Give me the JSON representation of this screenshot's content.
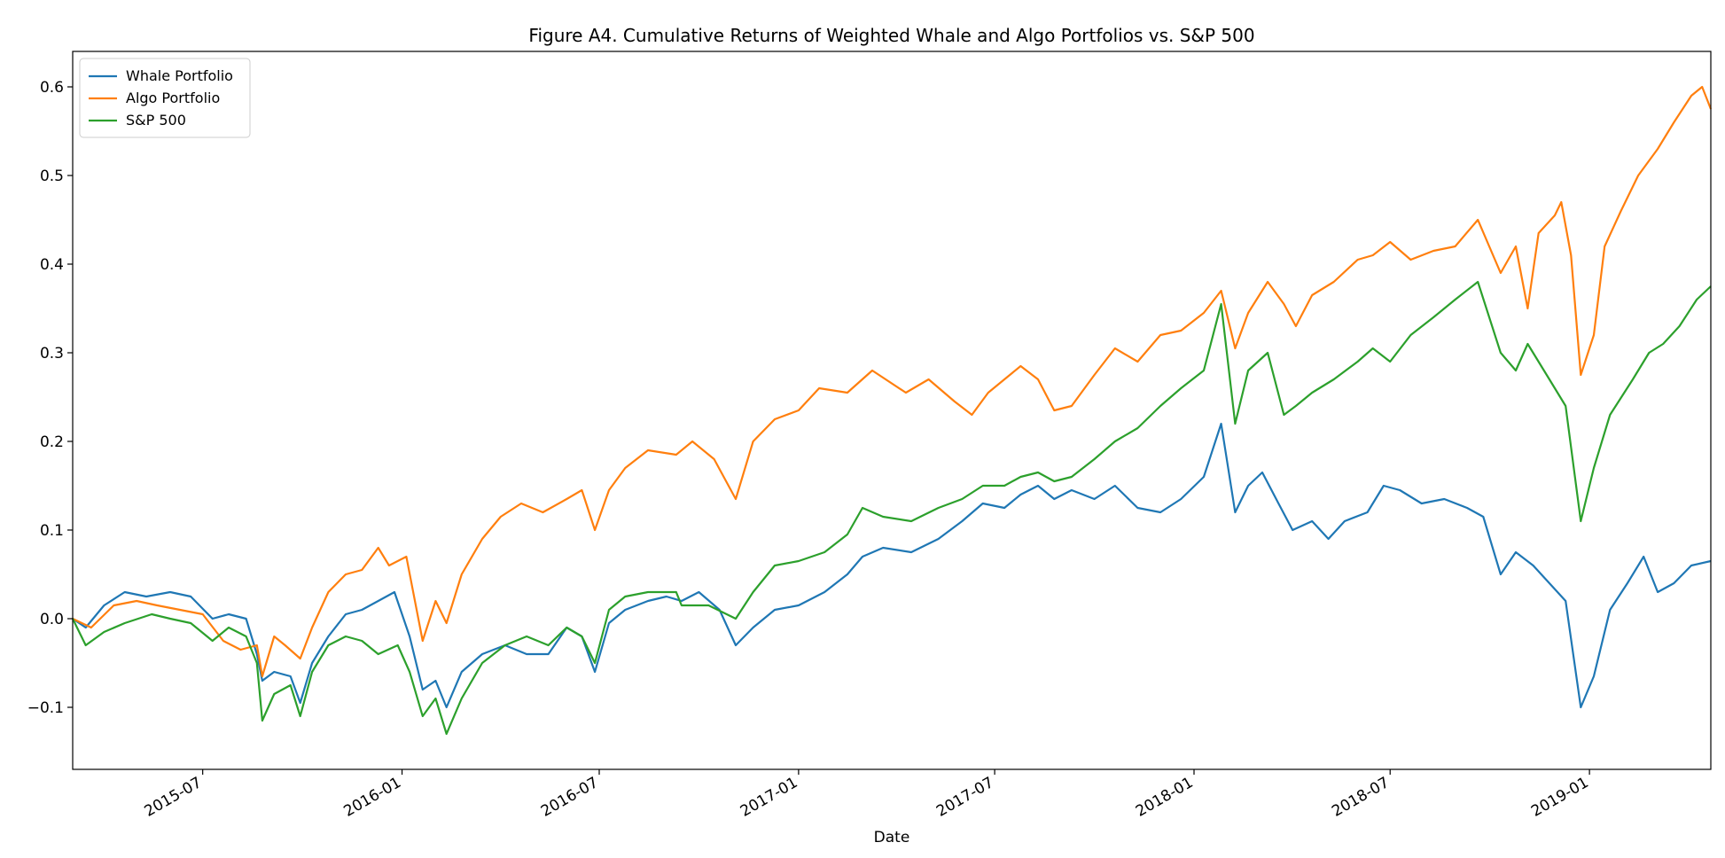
{
  "chart_data": {
    "type": "line",
    "title": "Figure A4. Cumulative Returns of Weighted Whale and Algo Portfolios vs. S&P 500",
    "xlabel": "Date",
    "ylabel": "",
    "xlim": [
      "2015-03-03",
      "2019-04-23"
    ],
    "ylim": [
      -0.17,
      0.64
    ],
    "grid": false,
    "legend_position": "top-left",
    "x_ticks": [
      "2015-07",
      "2016-01",
      "2016-07",
      "2017-01",
      "2017-07",
      "2018-01",
      "2018-07",
      "2019-01"
    ],
    "y_ticks": [
      "−0.1",
      "0.0",
      "0.1",
      "0.2",
      "0.3",
      "0.4",
      "0.5",
      "0.6"
    ],
    "series": [
      {
        "name": "Whale Portfolio",
        "color": "#1f77b4",
        "points": [
          [
            "2015-03-03",
            0.0
          ],
          [
            "2015-03-15",
            -0.01
          ],
          [
            "2015-04-01",
            0.015
          ],
          [
            "2015-04-20",
            0.03
          ],
          [
            "2015-05-10",
            0.025
          ],
          [
            "2015-06-01",
            0.03
          ],
          [
            "2015-06-20",
            0.025
          ],
          [
            "2015-07-10",
            0.0
          ],
          [
            "2015-07-25",
            0.005
          ],
          [
            "2015-08-10",
            0.0
          ],
          [
            "2015-08-20",
            -0.04
          ],
          [
            "2015-08-25",
            -0.07
          ],
          [
            "2015-09-05",
            -0.06
          ],
          [
            "2015-09-20",
            -0.065
          ],
          [
            "2015-09-29",
            -0.095
          ],
          [
            "2015-10-10",
            -0.05
          ],
          [
            "2015-10-25",
            -0.02
          ],
          [
            "2015-11-10",
            0.005
          ],
          [
            "2015-11-25",
            0.01
          ],
          [
            "2015-12-10",
            0.02
          ],
          [
            "2015-12-25",
            0.03
          ],
          [
            "2016-01-08",
            -0.02
          ],
          [
            "2016-01-20",
            -0.08
          ],
          [
            "2016-02-01",
            -0.07
          ],
          [
            "2016-02-11",
            -0.1
          ],
          [
            "2016-02-25",
            -0.06
          ],
          [
            "2016-03-15",
            -0.04
          ],
          [
            "2016-04-05",
            -0.03
          ],
          [
            "2016-04-25",
            -0.04
          ],
          [
            "2016-05-15",
            -0.04
          ],
          [
            "2016-06-01",
            -0.01
          ],
          [
            "2016-06-15",
            -0.02
          ],
          [
            "2016-06-27",
            -0.06
          ],
          [
            "2016-07-10",
            -0.005
          ],
          [
            "2016-07-25",
            0.01
          ],
          [
            "2016-08-15",
            0.02
          ],
          [
            "2016-09-01",
            0.025
          ],
          [
            "2016-09-15",
            0.02
          ],
          [
            "2016-10-01",
            0.03
          ],
          [
            "2016-10-20",
            0.01
          ],
          [
            "2016-11-04",
            -0.03
          ],
          [
            "2016-11-20",
            -0.01
          ],
          [
            "2016-12-10",
            0.01
          ],
          [
            "2017-01-01",
            0.015
          ],
          [
            "2017-01-25",
            0.03
          ],
          [
            "2017-02-15",
            0.05
          ],
          [
            "2017-03-01",
            0.07
          ],
          [
            "2017-03-20",
            0.08
          ],
          [
            "2017-04-15",
            0.075
          ],
          [
            "2017-05-10",
            0.09
          ],
          [
            "2017-06-01",
            0.11
          ],
          [
            "2017-06-20",
            0.13
          ],
          [
            "2017-07-10",
            0.125
          ],
          [
            "2017-07-25",
            0.14
          ],
          [
            "2017-08-10",
            0.15
          ],
          [
            "2017-08-25",
            0.135
          ],
          [
            "2017-09-10",
            0.145
          ],
          [
            "2017-10-01",
            0.135
          ],
          [
            "2017-10-20",
            0.15
          ],
          [
            "2017-11-10",
            0.125
          ],
          [
            "2017-12-01",
            0.12
          ],
          [
            "2017-12-20",
            0.135
          ],
          [
            "2018-01-10",
            0.16
          ],
          [
            "2018-01-26",
            0.22
          ],
          [
            "2018-02-08",
            0.12
          ],
          [
            "2018-02-20",
            0.15
          ],
          [
            "2018-03-05",
            0.165
          ],
          [
            "2018-03-20",
            0.13
          ],
          [
            "2018-04-02",
            0.1
          ],
          [
            "2018-04-20",
            0.11
          ],
          [
            "2018-05-05",
            0.09
          ],
          [
            "2018-05-20",
            0.11
          ],
          [
            "2018-06-10",
            0.12
          ],
          [
            "2018-06-25",
            0.15
          ],
          [
            "2018-07-10",
            0.145
          ],
          [
            "2018-07-30",
            0.13
          ],
          [
            "2018-08-20",
            0.135
          ],
          [
            "2018-09-10",
            0.125
          ],
          [
            "2018-09-25",
            0.115
          ],
          [
            "2018-10-11",
            0.05
          ],
          [
            "2018-10-25",
            0.075
          ],
          [
            "2018-11-10",
            0.06
          ],
          [
            "2018-11-25",
            0.04
          ],
          [
            "2018-12-10",
            0.02
          ],
          [
            "2018-12-24",
            -0.1
          ],
          [
            "2019-01-05",
            -0.065
          ],
          [
            "2019-01-20",
            0.01
          ],
          [
            "2019-02-05",
            0.04
          ],
          [
            "2019-02-20",
            0.07
          ],
          [
            "2019-03-05",
            0.03
          ],
          [
            "2019-03-20",
            0.04
          ],
          [
            "2019-04-05",
            0.06
          ],
          [
            "2019-04-23",
            0.065
          ]
        ]
      },
      {
        "name": "Algo Portfolio",
        "color": "#ff7f0e",
        "points": [
          [
            "2015-03-03",
            0.0
          ],
          [
            "2015-03-20",
            -0.01
          ],
          [
            "2015-04-10",
            0.015
          ],
          [
            "2015-05-01",
            0.02
          ],
          [
            "2015-05-20",
            0.015
          ],
          [
            "2015-06-10",
            0.01
          ],
          [
            "2015-07-01",
            0.005
          ],
          [
            "2015-07-20",
            -0.025
          ],
          [
            "2015-08-05",
            -0.035
          ],
          [
            "2015-08-20",
            -0.03
          ],
          [
            "2015-08-25",
            -0.065
          ],
          [
            "2015-09-05",
            -0.02
          ],
          [
            "2015-09-15",
            -0.03
          ],
          [
            "2015-09-29",
            -0.045
          ],
          [
            "2015-10-10",
            -0.01
          ],
          [
            "2015-10-25",
            0.03
          ],
          [
            "2015-11-10",
            0.05
          ],
          [
            "2015-11-25",
            0.055
          ],
          [
            "2015-12-10",
            0.08
          ],
          [
            "2015-12-20",
            0.06
          ],
          [
            "2016-01-05",
            0.07
          ],
          [
            "2016-01-20",
            -0.025
          ],
          [
            "2016-02-01",
            0.02
          ],
          [
            "2016-02-11",
            -0.005
          ],
          [
            "2016-02-25",
            0.05
          ],
          [
            "2016-03-15",
            0.09
          ],
          [
            "2016-04-01",
            0.115
          ],
          [
            "2016-04-20",
            0.13
          ],
          [
            "2016-05-10",
            0.12
          ],
          [
            "2016-06-01",
            0.135
          ],
          [
            "2016-06-15",
            0.145
          ],
          [
            "2016-06-27",
            0.1
          ],
          [
            "2016-07-10",
            0.145
          ],
          [
            "2016-07-25",
            0.17
          ],
          [
            "2016-08-15",
            0.19
          ],
          [
            "2016-09-10",
            0.185
          ],
          [
            "2016-09-25",
            0.2
          ],
          [
            "2016-10-15",
            0.18
          ],
          [
            "2016-11-04",
            0.135
          ],
          [
            "2016-11-20",
            0.2
          ],
          [
            "2016-12-10",
            0.225
          ],
          [
            "2017-01-01",
            0.235
          ],
          [
            "2017-01-20",
            0.26
          ],
          [
            "2017-02-15",
            0.255
          ],
          [
            "2017-03-10",
            0.28
          ],
          [
            "2017-04-10",
            0.255
          ],
          [
            "2017-05-01",
            0.27
          ],
          [
            "2017-05-25",
            0.245
          ],
          [
            "2017-06-10",
            0.23
          ],
          [
            "2017-06-25",
            0.255
          ],
          [
            "2017-07-10",
            0.27
          ],
          [
            "2017-07-25",
            0.285
          ],
          [
            "2017-08-10",
            0.27
          ],
          [
            "2017-08-25",
            0.235
          ],
          [
            "2017-09-10",
            0.24
          ],
          [
            "2017-10-01",
            0.275
          ],
          [
            "2017-10-20",
            0.305
          ],
          [
            "2017-11-10",
            0.29
          ],
          [
            "2017-12-01",
            0.32
          ],
          [
            "2017-12-20",
            0.325
          ],
          [
            "2018-01-10",
            0.345
          ],
          [
            "2018-01-26",
            0.37
          ],
          [
            "2018-02-08",
            0.305
          ],
          [
            "2018-02-20",
            0.345
          ],
          [
            "2018-03-10",
            0.38
          ],
          [
            "2018-03-25",
            0.355
          ],
          [
            "2018-04-05",
            0.33
          ],
          [
            "2018-04-20",
            0.365
          ],
          [
            "2018-05-10",
            0.38
          ],
          [
            "2018-06-01",
            0.405
          ],
          [
            "2018-06-15",
            0.41
          ],
          [
            "2018-07-01",
            0.425
          ],
          [
            "2018-07-20",
            0.405
          ],
          [
            "2018-08-10",
            0.415
          ],
          [
            "2018-08-30",
            0.42
          ],
          [
            "2018-09-20",
            0.45
          ],
          [
            "2018-10-11",
            0.39
          ],
          [
            "2018-10-25",
            0.42
          ],
          [
            "2018-11-05",
            0.35
          ],
          [
            "2018-11-15",
            0.435
          ],
          [
            "2018-11-30",
            0.455
          ],
          [
            "2018-12-06",
            0.47
          ],
          [
            "2018-12-15",
            0.41
          ],
          [
            "2018-12-24",
            0.275
          ],
          [
            "2019-01-05",
            0.32
          ],
          [
            "2019-01-15",
            0.42
          ],
          [
            "2019-01-30",
            0.46
          ],
          [
            "2019-02-15",
            0.5
          ],
          [
            "2019-03-05",
            0.53
          ],
          [
            "2019-03-20",
            0.56
          ],
          [
            "2019-04-05",
            0.59
          ],
          [
            "2019-04-15",
            0.6
          ],
          [
            "2019-04-23",
            0.575
          ]
        ]
      },
      {
        "name": "S&P 500",
        "color": "#2ca02c",
        "points": [
          [
            "2015-03-03",
            0.0
          ],
          [
            "2015-03-15",
            -0.03
          ],
          [
            "2015-04-01",
            -0.015
          ],
          [
            "2015-04-20",
            -0.005
          ],
          [
            "2015-05-15",
            0.005
          ],
          [
            "2015-06-01",
            0.0
          ],
          [
            "2015-06-20",
            -0.005
          ],
          [
            "2015-07-10",
            -0.025
          ],
          [
            "2015-07-25",
            -0.01
          ],
          [
            "2015-08-10",
            -0.02
          ],
          [
            "2015-08-20",
            -0.05
          ],
          [
            "2015-08-25",
            -0.115
          ],
          [
            "2015-09-05",
            -0.085
          ],
          [
            "2015-09-20",
            -0.075
          ],
          [
            "2015-09-29",
            -0.11
          ],
          [
            "2015-10-10",
            -0.06
          ],
          [
            "2015-10-25",
            -0.03
          ],
          [
            "2015-11-10",
            -0.02
          ],
          [
            "2015-11-25",
            -0.025
          ],
          [
            "2015-12-10",
            -0.04
          ],
          [
            "2015-12-28",
            -0.03
          ],
          [
            "2016-01-08",
            -0.06
          ],
          [
            "2016-01-20",
            -0.11
          ],
          [
            "2016-02-01",
            -0.09
          ],
          [
            "2016-02-11",
            -0.13
          ],
          [
            "2016-02-25",
            -0.09
          ],
          [
            "2016-03-15",
            -0.05
          ],
          [
            "2016-04-05",
            -0.03
          ],
          [
            "2016-04-25",
            -0.02
          ],
          [
            "2016-05-15",
            -0.03
          ],
          [
            "2016-06-01",
            -0.01
          ],
          [
            "2016-06-15",
            -0.02
          ],
          [
            "2016-06-27",
            -0.05
          ],
          [
            "2016-07-10",
            0.01
          ],
          [
            "2016-07-25",
            0.025
          ],
          [
            "2016-08-15",
            0.03
          ],
          [
            "2016-09-10",
            0.03
          ],
          [
            "2016-09-15",
            0.015
          ],
          [
            "2016-10-10",
            0.015
          ],
          [
            "2016-11-04",
            0.0
          ],
          [
            "2016-11-20",
            0.03
          ],
          [
            "2016-12-10",
            0.06
          ],
          [
            "2017-01-01",
            0.065
          ],
          [
            "2017-01-25",
            0.075
          ],
          [
            "2017-02-15",
            0.095
          ],
          [
            "2017-03-01",
            0.125
          ],
          [
            "2017-03-20",
            0.115
          ],
          [
            "2017-04-15",
            0.11
          ],
          [
            "2017-05-10",
            0.125
          ],
          [
            "2017-06-01",
            0.135
          ],
          [
            "2017-06-20",
            0.15
          ],
          [
            "2017-07-10",
            0.15
          ],
          [
            "2017-07-25",
            0.16
          ],
          [
            "2017-08-10",
            0.165
          ],
          [
            "2017-08-25",
            0.155
          ],
          [
            "2017-09-10",
            0.16
          ],
          [
            "2017-10-01",
            0.18
          ],
          [
            "2017-10-20",
            0.2
          ],
          [
            "2017-11-10",
            0.215
          ],
          [
            "2017-12-01",
            0.24
          ],
          [
            "2017-12-20",
            0.26
          ],
          [
            "2018-01-10",
            0.28
          ],
          [
            "2018-01-26",
            0.355
          ],
          [
            "2018-02-08",
            0.22
          ],
          [
            "2018-02-20",
            0.28
          ],
          [
            "2018-03-10",
            0.3
          ],
          [
            "2018-03-25",
            0.23
          ],
          [
            "2018-04-05",
            0.24
          ],
          [
            "2018-04-20",
            0.255
          ],
          [
            "2018-05-10",
            0.27
          ],
          [
            "2018-06-01",
            0.29
          ],
          [
            "2018-06-15",
            0.305
          ],
          [
            "2018-07-01",
            0.29
          ],
          [
            "2018-07-20",
            0.32
          ],
          [
            "2018-08-10",
            0.34
          ],
          [
            "2018-08-30",
            0.36
          ],
          [
            "2018-09-20",
            0.38
          ],
          [
            "2018-10-11",
            0.3
          ],
          [
            "2018-10-25",
            0.28
          ],
          [
            "2018-11-05",
            0.31
          ],
          [
            "2018-11-25",
            0.27
          ],
          [
            "2018-12-10",
            0.24
          ],
          [
            "2018-12-24",
            0.11
          ],
          [
            "2019-01-05",
            0.17
          ],
          [
            "2019-01-20",
            0.23
          ],
          [
            "2019-02-10",
            0.27
          ],
          [
            "2019-02-25",
            0.3
          ],
          [
            "2019-03-10",
            0.31
          ],
          [
            "2019-03-25",
            0.33
          ],
          [
            "2019-04-10",
            0.36
          ],
          [
            "2019-04-23",
            0.375
          ]
        ]
      }
    ]
  }
}
